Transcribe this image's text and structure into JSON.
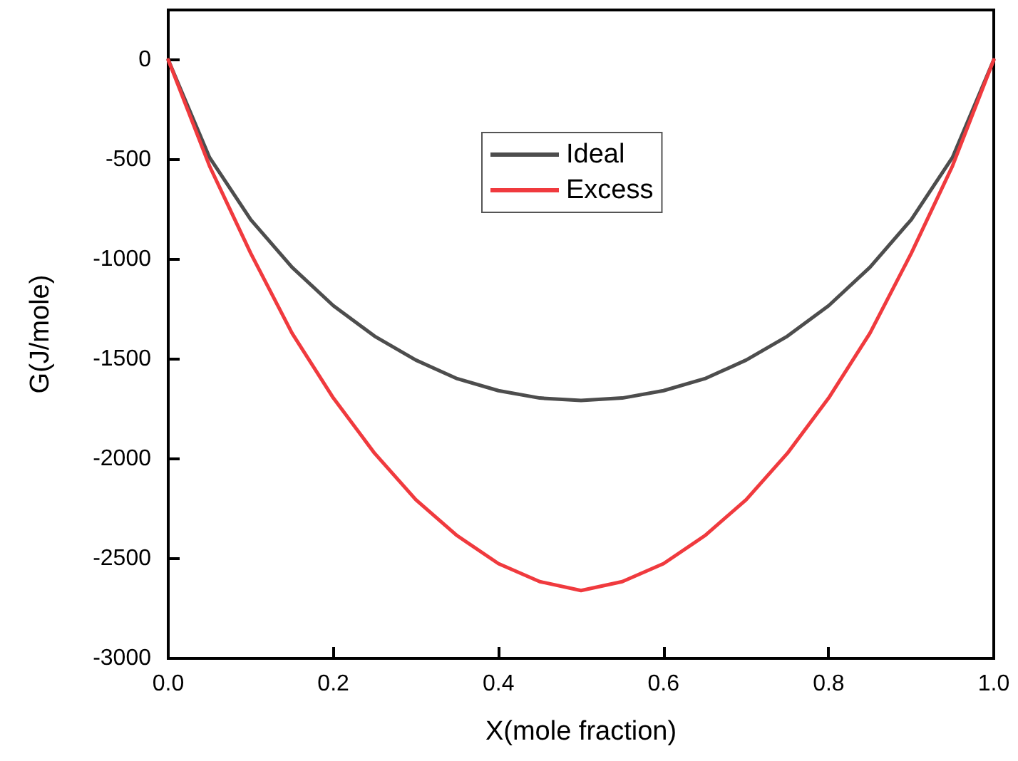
{
  "chart_data": {
    "type": "line",
    "xlabel": "X(mole fraction)",
    "ylabel": "G(J/mole)",
    "x": [
      0,
      0.05,
      0.1,
      0.15,
      0.2,
      0.25,
      0.3,
      0.35,
      0.4,
      0.45,
      0.5,
      0.55,
      0.6,
      0.65,
      0.7,
      0.75,
      0.8,
      0.85,
      0.9,
      0.95,
      1
    ],
    "series": [
      {
        "name": "Ideal",
        "color": "#4d4d4d",
        "values": [
          0,
          -489,
          -801,
          -1040,
          -1232,
          -1385,
          -1505,
          -1598,
          -1658,
          -1695,
          -1707,
          -1695,
          -1658,
          -1598,
          -1505,
          -1385,
          -1232,
          -1040,
          -801,
          -489,
          0
        ]
      },
      {
        "name": "Excess",
        "color": "#f03a3e",
        "values": [
          0,
          -532,
          -970,
          -1370,
          -1695,
          -1972,
          -2205,
          -2385,
          -2525,
          -2615,
          -2660,
          -2615,
          -2525,
          -2385,
          -2205,
          -1972,
          -1695,
          -1370,
          -970,
          -532,
          0
        ]
      }
    ],
    "xlim": [
      0,
      1
    ],
    "ylim": [
      -3000,
      250
    ],
    "xticks": [
      {
        "value": 0,
        "label": "0.0"
      },
      {
        "value": 0.2,
        "label": "0.2"
      },
      {
        "value": 0.4,
        "label": "0.4"
      },
      {
        "value": 0.6,
        "label": "0.6"
      },
      {
        "value": 0.8,
        "label": "0.8"
      },
      {
        "value": 1,
        "label": "1.0"
      }
    ],
    "yticks": [
      -3000,
      -2500,
      -2000,
      -1500,
      -1000,
      -500,
      0
    ],
    "grid": false,
    "legend": "top",
    "marker": "none",
    "line_style": "solid"
  }
}
